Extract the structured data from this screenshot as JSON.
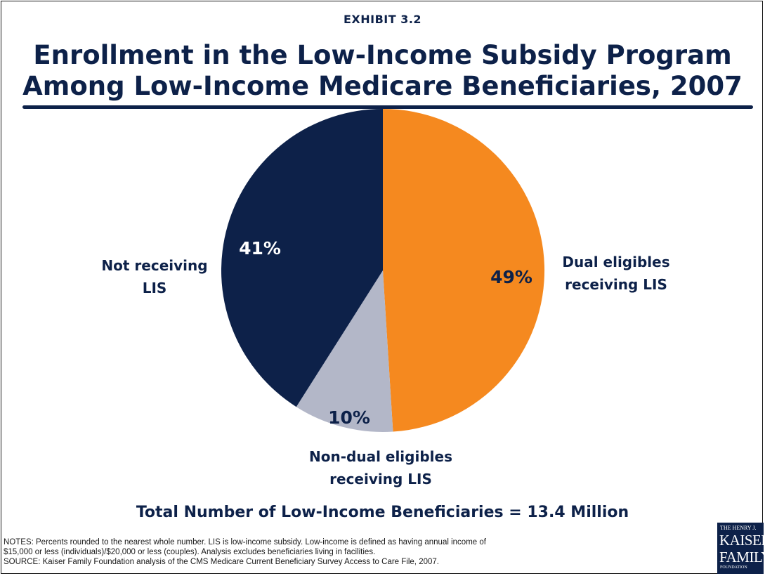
{
  "exhibit": "EXHIBIT 3.2",
  "title_line1": "Enrollment in the Low-Income Subsidy Program",
  "title_line2": "Among Low-Income Medicare Beneficiaries, 2007",
  "colors": {
    "navy": "#0d2149",
    "orange": "#f5891f",
    "gray": "#b3b7c8"
  },
  "chart_data": {
    "type": "pie",
    "title": "Enrollment in the Low-Income Subsidy Program Among Low-Income Medicare Beneficiaries, 2007",
    "slices": [
      {
        "label": "Dual eligibles receiving LIS",
        "value": 49,
        "value_label": "49%",
        "color": "#f5891f"
      },
      {
        "label": "Non-dual eligibles receiving LIS",
        "value": 10,
        "value_label": "10%",
        "color": "#b3b7c8"
      },
      {
        "label": "Not receiving LIS",
        "value": 41,
        "value_label": "41%",
        "color": "#0d2149"
      }
    ]
  },
  "labels": {
    "dual_line1": "Dual eligibles",
    "dual_line2": "receiving LIS",
    "nondual_line1": "Non-dual eligibles",
    "nondual_line2": "receiving LIS",
    "not_line1": "Not receiving",
    "not_line2": "LIS"
  },
  "total": "Total Number of Low-Income Beneficiaries = 13.4 Million",
  "notes_line1": "NOTES: Percents rounded to the nearest whole number. LIS is low-income subsidy.  Low-income is defined as having annual income of",
  "notes_line2": "$15,000 or less (individuals)/$20,000 or less (couples). Analysis excludes beneficiaries living in facilities.",
  "notes_line3": "SOURCE: Kaiser Family Foundation analysis of the CMS Medicare Current Beneficiary Survey Access to Care File, 2007.",
  "logo": {
    "line1": "THE HENRY J.",
    "line2": "KAISER",
    "line3": "FAMILY",
    "line4": "FOUNDATION"
  }
}
